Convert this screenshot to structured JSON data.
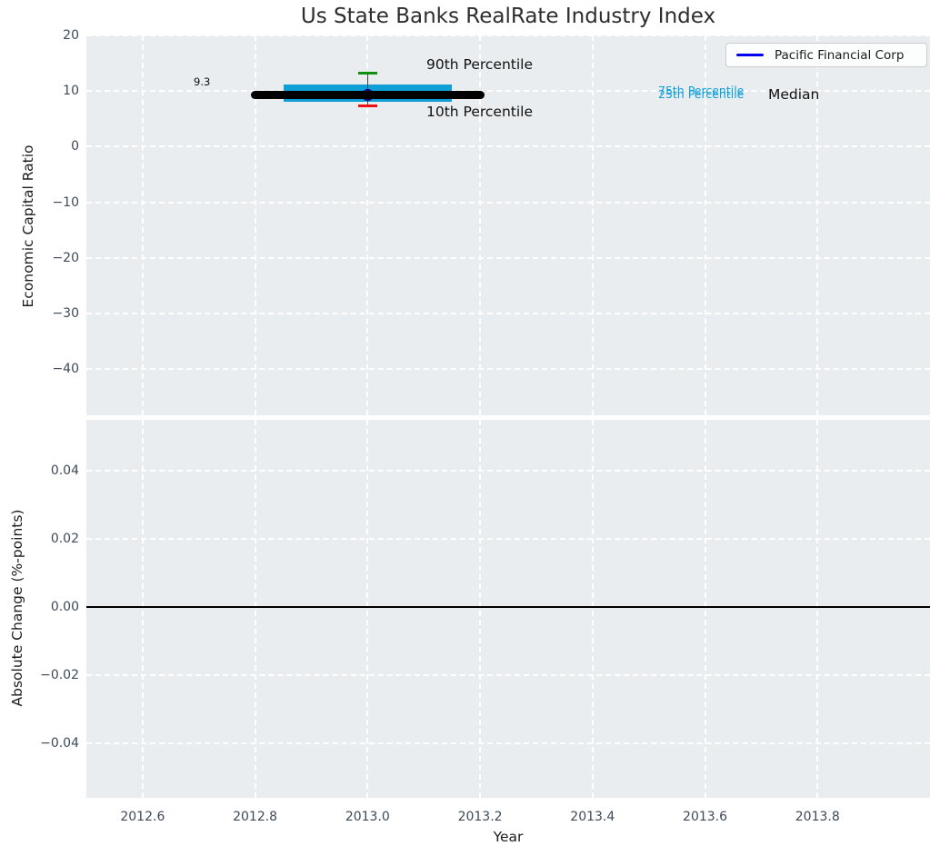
{
  "figure": {
    "title": "Us State Banks RealRate Industry Index",
    "xlabel": "Year",
    "top_ylabel": "Economic Capital Ratio",
    "bottom_ylabel": "Absolute Change (%-points)",
    "legend": {
      "label": "Pacific Financial Corp"
    }
  },
  "annotations": {
    "p90_label": "90th Percentile",
    "p10_label": "10th Percentile",
    "p75_label": "75th Percentile",
    "p25_label": "25th Percentile",
    "median_label": "Median",
    "value_label": "9.3"
  },
  "colors": {
    "iqr_band": "#0d9fd6",
    "median_line": "#000000",
    "p90_cap": "#0e8f0e",
    "p10_cap": "#ee1111",
    "whisker": "#404040",
    "company_point": "#00008b",
    "legend_line": "#0000ee",
    "plot_background": "#e9edf0",
    "grid": "#ffffff",
    "tick_label": "#3e4a58",
    "zero_line": "#000000"
  },
  "chart_data": [
    {
      "type": "line",
      "subtype": "percentile-band-single-year",
      "title": "Us State Banks RealRate Industry Index",
      "xlabel": "Year",
      "ylabel": "Economic Capital Ratio",
      "xlim": [
        2012.5,
        2014.0
      ],
      "ylim": [
        -48.3,
        20.0
      ],
      "xticks": [
        2012.6,
        2012.8,
        2013.0,
        2013.2,
        2013.4,
        2013.6,
        2013.8
      ],
      "yticks": [
        20,
        10,
        0,
        -10,
        -20,
        -30,
        -40
      ],
      "grid": true,
      "legend_position": "upper right",
      "legend_entries": [
        "Pacific Financial Corp"
      ],
      "series": [
        {
          "name": "Industry percentiles",
          "x": 2013.0,
          "median": 9.3,
          "p10": 7.3,
          "p25": 8.1,
          "p75": 11.1,
          "p90": 13.2,
          "median_x_span": [
            2012.8,
            2013.2
          ],
          "iqr_x_span": [
            2012.85,
            2013.15
          ]
        },
        {
          "name": "Pacific Financial Corp",
          "x": 2013.0,
          "value": 9.3
        }
      ],
      "annotations": [
        "9.3",
        "90th Percentile",
        "10th Percentile",
        "75th Percentile",
        "25th Percentile",
        "Median"
      ]
    },
    {
      "type": "line",
      "subtype": "zero-change-line",
      "xlabel": "Year",
      "ylabel": "Absolute Change (%-points)",
      "xlim": [
        2012.5,
        2014.0
      ],
      "ylim": [
        -0.056,
        0.055
      ],
      "xticks": [
        2012.6,
        2012.8,
        2013.0,
        2013.2,
        2013.4,
        2013.6,
        2013.8
      ],
      "yticks": [
        0.04,
        0.02,
        0,
        -0.02,
        -0.04
      ],
      "grid": true,
      "series": [
        {
          "name": "zero line",
          "y": 0.0
        }
      ]
    }
  ]
}
